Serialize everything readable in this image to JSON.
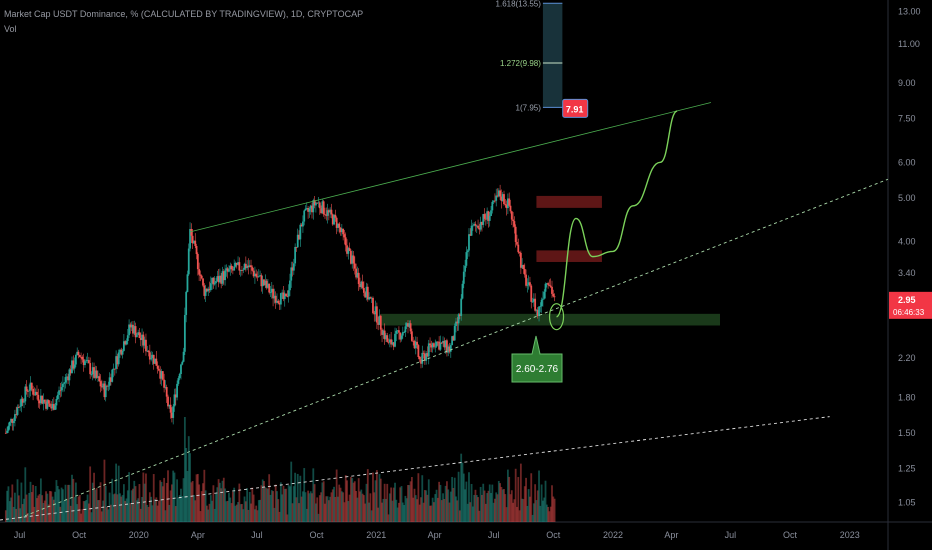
{
  "header": {
    "title": "Market Cap USDT Dominance, % (CALCULATED BY TRADINGVIEW), 1D, CRYPTOCAP",
    "vol_label": "Vol"
  },
  "colors": {
    "background": "#000000",
    "up": "#26a69a",
    "down": "#ef5350",
    "trendline": "#4caf50",
    "projection": "#7bd15a",
    "resistance_zone": "#6e1a1a",
    "support_zone": "#1d3f1d",
    "fib_box": "#1e3f49",
    "price_tag": "#f23645"
  },
  "chart_data": {
    "type": "candlestick",
    "title": "Market Cap USDT Dominance, % (CALCULATED BY TRADINGVIEW), 1D, CRYPTOCAP",
    "y_scale": "log",
    "ylim": [
      0.95,
      13.5
    ],
    "y_ticks": [
      "13.00",
      "11.00",
      "9.00",
      "7.50",
      "6.00",
      "5.00",
      "4.00",
      "3.40",
      "2.20",
      "1.80",
      "1.50",
      "1.25",
      "1.05"
    ],
    "x_ticks": [
      "Jul",
      "Oct",
      "2020",
      "Apr",
      "Jul",
      "Oct",
      "2021",
      "Apr",
      "Jul",
      "Oct",
      "2022",
      "Apr",
      "Jul",
      "Oct",
      "2023"
    ],
    "x_range": [
      "2019-06-01",
      "2023-03-01"
    ],
    "price_path": [
      {
        "date": "2019-06-10",
        "value": 1.5
      },
      {
        "date": "2019-07-15",
        "value": 1.9
      },
      {
        "date": "2019-08-20",
        "value": 1.7
      },
      {
        "date": "2019-10-01",
        "value": 2.25
      },
      {
        "date": "2019-11-10",
        "value": 1.85
      },
      {
        "date": "2019-12-20",
        "value": 2.6
      },
      {
        "date": "2020-02-01",
        "value": 2.1
      },
      {
        "date": "2020-02-20",
        "value": 1.6
      },
      {
        "date": "2020-03-10",
        "value": 2.3
      },
      {
        "date": "2020-03-20",
        "value": 4.2
      },
      {
        "date": "2020-04-10",
        "value": 3.1
      },
      {
        "date": "2020-05-15",
        "value": 3.4
      },
      {
        "date": "2020-06-15",
        "value": 3.55
      },
      {
        "date": "2020-07-25",
        "value": 3.05
      },
      {
        "date": "2020-08-15",
        "value": 2.95
      },
      {
        "date": "2020-09-10",
        "value": 4.5
      },
      {
        "date": "2020-10-01",
        "value": 4.9
      },
      {
        "date": "2020-11-01",
        "value": 4.4
      },
      {
        "date": "2020-12-01",
        "value": 3.4
      },
      {
        "date": "2020-12-25",
        "value": 2.9
      },
      {
        "date": "2021-01-20",
        "value": 2.35
      },
      {
        "date": "2021-02-20",
        "value": 2.6
      },
      {
        "date": "2021-03-10",
        "value": 2.15
      },
      {
        "date": "2021-04-01",
        "value": 2.4
      },
      {
        "date": "2021-04-25",
        "value": 2.3
      },
      {
        "date": "2021-05-10",
        "value": 2.75
      },
      {
        "date": "2021-05-25",
        "value": 4.2
      },
      {
        "date": "2021-06-25",
        "value": 4.6
      },
      {
        "date": "2021-07-10",
        "value": 5.1
      },
      {
        "date": "2021-07-25",
        "value": 4.8
      },
      {
        "date": "2021-08-15",
        "value": 3.4
      },
      {
        "date": "2021-09-07",
        "value": 2.75
      },
      {
        "date": "2021-09-22",
        "value": 3.35
      },
      {
        "date": "2021-10-03",
        "value": 2.95
      }
    ],
    "annotations": {
      "current_price": "2.95",
      "countdown": "06:46:33",
      "target_price": "7.91",
      "support_label": "2.60-2.76",
      "fib_levels": [
        {
          "label": "1.618(13.55)",
          "value": 13.55
        },
        {
          "label": "1.272(9.98)",
          "value": 9.98
        },
        {
          "label": "1(7.95)",
          "value": 7.95
        }
      ],
      "resistance_zones": [
        [
          4.75,
          5.05
        ],
        [
          3.6,
          3.82
        ]
      ],
      "support_zone": [
        2.6,
        2.76
      ]
    }
  }
}
